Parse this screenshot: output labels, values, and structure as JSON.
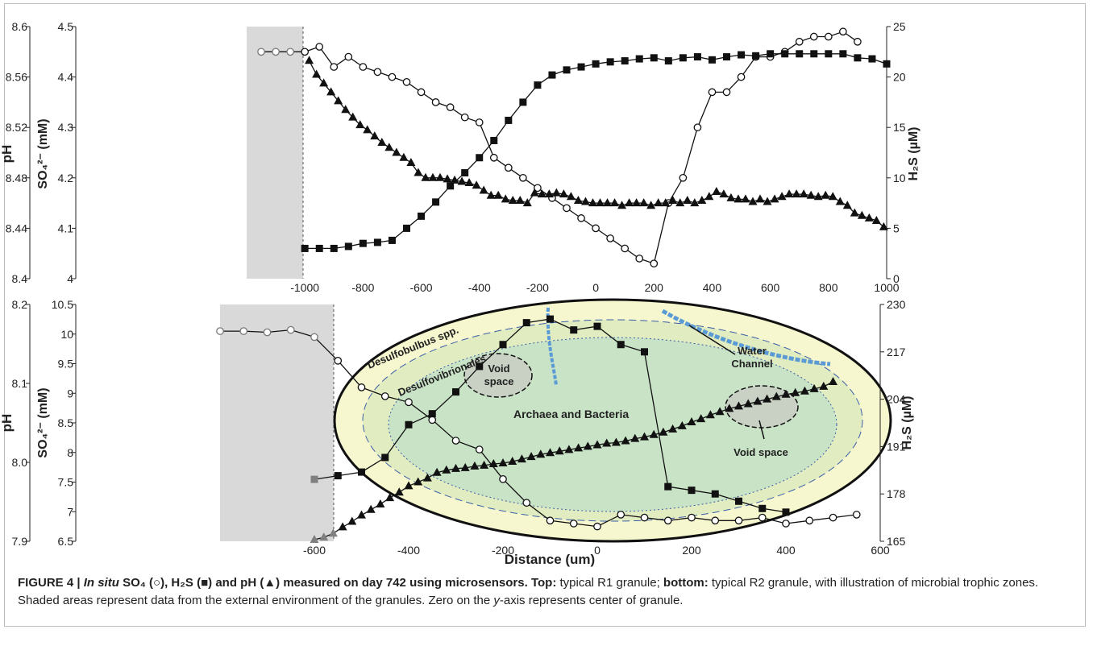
{
  "caption": {
    "label": "FIGURE 4 |",
    "em": "In situ",
    "bold_rest": "SO₄ (○), H₂S (■) and pH (▲) measured on day 742 using microsensors.",
    "top_label": "Top:",
    "top_text": "typical R1 granule;",
    "bottom_label": "bottom:",
    "bottom_text": "typical R2 granule, with illustration of microbial trophic zones. Shaded areas represent data from the external environment of the granules. Zero on the",
    "yaxis_word": "y",
    "tail_text": "-axis represents center of granule."
  },
  "chart_data": [
    {
      "type": "line",
      "panel": "top",
      "shaded_x": [
        -1200,
        -1000
      ],
      "xlim": [
        -1200,
        1000
      ],
      "xticks": [
        -1000,
        -800,
        -600,
        -400,
        -200,
        0,
        200,
        400,
        600,
        800,
        1000
      ],
      "axes": {
        "ph": {
          "label": "pH",
          "lim": [
            8.4,
            8.6
          ],
          "ticks": [
            "8.4",
            "8.44",
            "8.48",
            "8.52",
            "8.56",
            "8.6"
          ]
        },
        "so4": {
          "label": "SO₄²⁻ (mM)",
          "lim": [
            4.0,
            4.5
          ],
          "ticks": [
            "4",
            "4.1",
            "4.2",
            "4.3",
            "4.4",
            "4.5"
          ]
        },
        "h2s": {
          "label": "H₂S (µM)",
          "lim": [
            0,
            25
          ],
          "ticks": [
            "0",
            "5",
            "10",
            "15",
            "20",
            "25"
          ]
        }
      },
      "series": [
        {
          "key": "so4",
          "axis": "so4",
          "marker": "circle",
          "x": [
            -1150,
            -1100,
            -1050,
            -1000,
            -950,
            -900,
            -850,
            -800,
            -750,
            -700,
            -650,
            -600,
            -550,
            -500,
            -450,
            -400,
            -350,
            -300,
            -250,
            -200,
            -150,
            -100,
            -50,
            0,
            50,
            100,
            150,
            200,
            250,
            300,
            350,
            400,
            450,
            500,
            550,
            600,
            650,
            700,
            750,
            800,
            850,
            900
          ],
          "y": [
            4.45,
            4.45,
            4.45,
            4.45,
            4.46,
            4.42,
            4.44,
            4.42,
            4.41,
            4.4,
            4.39,
            4.37,
            4.35,
            4.34,
            4.32,
            4.31,
            4.24,
            4.22,
            4.2,
            4.18,
            4.16,
            4.14,
            4.12,
            4.1,
            4.08,
            4.06,
            4.04,
            4.03,
            4.15,
            4.2,
            4.3,
            4.37,
            4.37,
            4.4,
            4.44,
            4.44,
            4.45,
            4.47,
            4.48,
            4.48,
            4.49,
            4.47
          ]
        },
        {
          "key": "h2s",
          "axis": "h2s",
          "marker": "square",
          "x": [
            -1000,
            -950,
            -900,
            -850,
            -800,
            -750,
            -700,
            -650,
            -600,
            -550,
            -500,
            -450,
            -400,
            -350,
            -300,
            -250,
            -200,
            -150,
            -100,
            -50,
            0,
            50,
            100,
            150,
            200,
            250,
            300,
            350,
            400,
            450,
            500,
            550,
            600,
            650,
            700,
            750,
            800,
            850,
            900,
            950,
            1000
          ],
          "y": [
            3,
            3,
            3,
            3.2,
            3.5,
            3.6,
            3.8,
            5.0,
            6.2,
            7.6,
            9.2,
            10.5,
            12.0,
            13.7,
            15.7,
            17.5,
            19.2,
            20.2,
            20.7,
            21.0,
            21.3,
            21.5,
            21.6,
            21.8,
            21.9,
            21.6,
            21.9,
            22.0,
            21.7,
            22.0,
            22.2,
            22.1,
            22.3,
            22.3,
            22.3,
            22.3,
            22.3,
            22.3,
            21.9,
            21.8,
            21.3
          ]
        },
        {
          "key": "ph",
          "axis": "ph",
          "marker": "triangle",
          "x": [
            -985,
            -960,
            -935,
            -910,
            -885,
            -860,
            -835,
            -810,
            -785,
            -760,
            -735,
            -710,
            -685,
            -660,
            -635,
            -610,
            -585,
            -560,
            -535,
            -510,
            -485,
            -460,
            -435,
            -410,
            -385,
            -360,
            -335,
            -310,
            -285,
            -260,
            -235,
            -210,
            -185,
            -160,
            -135,
            -110,
            -85,
            -60,
            -35,
            -10,
            15,
            40,
            65,
            90,
            115,
            140,
            165,
            190,
            215,
            240,
            265,
            290,
            315,
            340,
            365,
            390,
            415,
            440,
            465,
            490,
            515,
            540,
            565,
            590,
            615,
            640,
            665,
            690,
            715,
            740,
            765,
            790,
            815,
            840,
            865,
            890,
            915,
            940,
            965,
            990
          ],
          "y": [
            8.573,
            8.562,
            8.555,
            8.548,
            8.541,
            8.534,
            8.528,
            8.522,
            8.518,
            8.513,
            8.508,
            8.504,
            8.5,
            8.496,
            8.492,
            8.484,
            8.48,
            8.48,
            8.48,
            8.479,
            8.478,
            8.477,
            8.476,
            8.474,
            8.47,
            8.466,
            8.466,
            8.463,
            8.462,
            8.462,
            8.46,
            8.468,
            8.467,
            8.467,
            8.468,
            8.467,
            8.465,
            8.462,
            8.461,
            8.46,
            8.46,
            8.46,
            8.46,
            8.458,
            8.46,
            8.46,
            8.46,
            8.458,
            8.46,
            8.46,
            8.462,
            8.46,
            8.462,
            8.46,
            8.462,
            8.465,
            8.469,
            8.467,
            8.464,
            8.463,
            8.463,
            8.461,
            8.463,
            8.461,
            8.463,
            8.465,
            8.467,
            8.467,
            8.467,
            8.466,
            8.465,
            8.466,
            8.465,
            8.461,
            8.458,
            8.452,
            8.45,
            8.448,
            8.446,
            8.441
          ]
        }
      ]
    },
    {
      "type": "line",
      "panel": "bottom",
      "shaded_x": [
        -800,
        -600
      ],
      "xlim": [
        -800,
        600
      ],
      "xticks": [
        -600,
        -400,
        -200,
        0,
        200,
        400,
        600
      ],
      "xlabel": "Distance (um)",
      "axes": {
        "ph": {
          "label": "pH",
          "lim": [
            7.9,
            8.2
          ],
          "ticks": [
            "7.9",
            "8.0",
            "8.1",
            "8.2"
          ]
        },
        "so4": {
          "label": "SO₄²⁻ (mM)",
          "lim": [
            6.5,
            10.5
          ],
          "ticks": [
            "6.5",
            "7",
            "7.5",
            "8",
            "8.5",
            "9",
            "9.5",
            "10",
            "10.5"
          ]
        },
        "h2s": {
          "label": "H₂S (µM)",
          "lim": [
            165,
            230
          ],
          "ticks": [
            "165",
            "178",
            "191",
            "204",
            "217",
            "230"
          ]
        }
      },
      "series": [
        {
          "key": "so4",
          "axis": "so4",
          "marker": "circle",
          "x": [
            -800,
            -750,
            -700,
            -650,
            -600,
            -550,
            -500,
            -450,
            -400,
            -350,
            -300,
            -250,
            -200,
            -150,
            -100,
            -50,
            0,
            50,
            100,
            150,
            200,
            250,
            300,
            350,
            400,
            450,
            500,
            550
          ],
          "y": [
            10.05,
            10.05,
            10.03,
            10.07,
            9.95,
            9.55,
            9.1,
            8.95,
            8.85,
            8.55,
            8.2,
            8.05,
            7.55,
            7.15,
            6.85,
            6.8,
            6.75,
            6.95,
            6.9,
            6.85,
            6.9,
            6.85,
            6.85,
            6.9,
            6.8,
            6.85,
            6.9,
            6.95
          ]
        },
        {
          "key": "h2s",
          "axis": "h2s",
          "marker": "square",
          "x": [
            -600,
            -550,
            -500,
            -450,
            -400,
            -350,
            -300,
            -250,
            -200,
            -150,
            -100,
            -50,
            0,
            50,
            100,
            150,
            200,
            250,
            300,
            350,
            400
          ],
          "y": [
            182,
            183,
            184,
            188,
            197,
            200,
            206,
            213,
            219,
            225,
            226,
            223,
            224,
            219,
            217,
            180,
            179,
            178,
            176,
            174,
            173
          ]
        },
        {
          "key": "ph",
          "axis": "ph",
          "marker": "triangle",
          "x": [
            -600,
            -580,
            -560,
            -540,
            -520,
            -500,
            -480,
            -460,
            -440,
            -420,
            -400,
            -380,
            -360,
            -340,
            -320,
            -300,
            -280,
            -260,
            -240,
            -220,
            -200,
            -180,
            -160,
            -140,
            -120,
            -100,
            -80,
            -60,
            -40,
            -20,
            0,
            20,
            40,
            60,
            80,
            100,
            120,
            140,
            160,
            180,
            200,
            220,
            240,
            260,
            280,
            300,
            320,
            340,
            360,
            380,
            400,
            420,
            440,
            460,
            480,
            500
          ],
          "y": [
            7.902,
            7.905,
            7.91,
            7.918,
            7.925,
            7.933,
            7.94,
            7.947,
            7.955,
            7.962,
            7.97,
            7.975,
            7.98,
            7.987,
            7.99,
            7.992,
            7.993,
            7.995,
            7.996,
            7.998,
            7.999,
            8.001,
            8.004,
            8.007,
            8.01,
            8.012,
            8.014,
            8.016,
            8.018,
            8.02,
            8.022,
            8.024,
            8.025,
            8.027,
            8.03,
            8.032,
            8.035,
            8.038,
            8.042,
            8.046,
            8.051,
            8.055,
            8.06,
            8.064,
            8.068,
            8.071,
            8.074,
            8.077,
            8.08,
            8.083,
            8.086,
            8.088,
            8.09,
            8.093,
            8.096,
            8.102
          ]
        }
      ],
      "illustration": {
        "outer_label": "Desulfobulbus spp.",
        "middle_label": "Desulfovibrionales",
        "core_label": "Archaea and Bacteria",
        "void_label_left": "Void\nspace",
        "void_label_right": "Void space",
        "channel_label": "Water\nChannel",
        "colors": {
          "outer": "#f6f7cf",
          "middle": "#e1ecc1",
          "core": "#c9e3c6",
          "channel": "#5b9bd5",
          "shade": "#d9d9d9"
        }
      }
    }
  ]
}
